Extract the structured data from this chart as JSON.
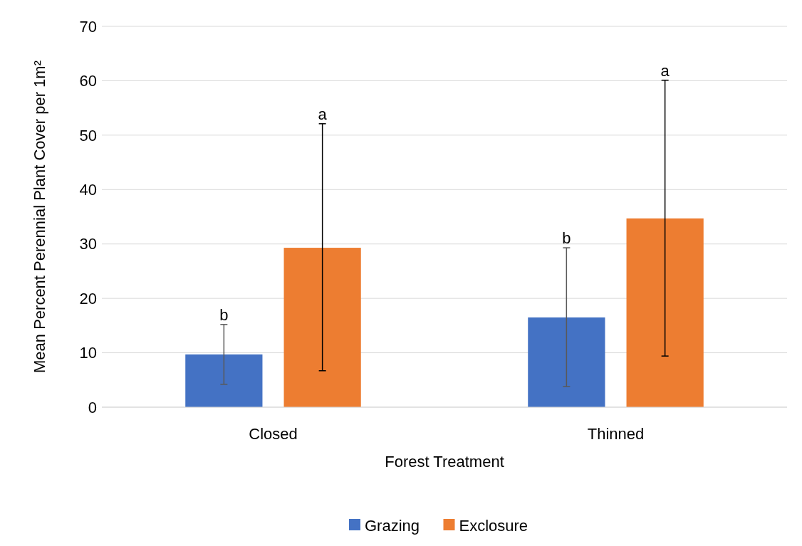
{
  "chart_data": {
    "type": "bar",
    "xlabel": "Forest Treatment",
    "ylabel": "Mean Percent Perennial Plant Cover per 1m²",
    "categories": [
      "Closed",
      "Thinned"
    ],
    "series": [
      {
        "name": "Grazing",
        "color": "#4472c4",
        "values": [
          9.7,
          16.5
        ],
        "errors": [
          [
            4.2,
            15.2
          ],
          [
            3.8,
            29.3
          ]
        ]
      },
      {
        "name": "Exclosure",
        "color": "#ed7d31",
        "values": [
          29.3,
          34.7
        ],
        "errors": [
          [
            6.7,
            52.1
          ],
          [
            9.4,
            60.1
          ]
        ]
      }
    ],
    "ylim": [
      0,
      70
    ],
    "yticks": [
      0,
      10,
      20,
      30,
      40,
      50,
      60,
      70
    ],
    "grid": "y",
    "legend": "bottom",
    "annotations": [
      "b",
      "a",
      "b",
      "a"
    ]
  }
}
